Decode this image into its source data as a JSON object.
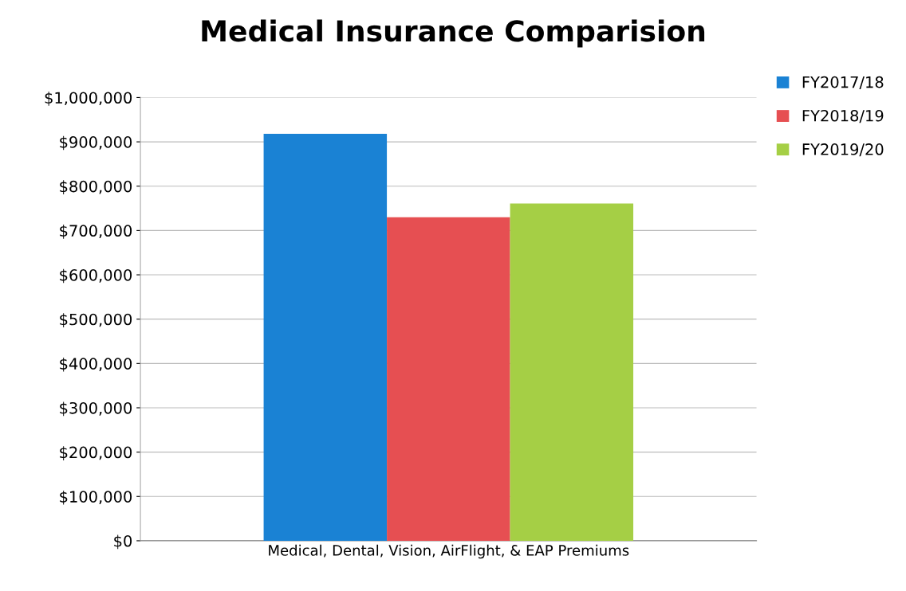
{
  "chart_data": {
    "type": "bar",
    "title": "Medical Insurance Comparision",
    "categories": [
      "Medical, Dental, Vision, AirFlight, & EAP Premiums"
    ],
    "series": [
      {
        "name": "FY2017/18",
        "color": "#1a82d4",
        "values": [
          918000
        ]
      },
      {
        "name": "FY2018/19",
        "color": "#e64f52",
        "values": [
          730000
        ]
      },
      {
        "name": "FY2019/20",
        "color": "#a5cf45",
        "values": [
          761000
        ]
      }
    ],
    "ylim": [
      0,
      1000000
    ],
    "yticks": [
      {
        "value": 0,
        "label": "$0"
      },
      {
        "value": 100000,
        "label": "$100,000"
      },
      {
        "value": 200000,
        "label": "$200,000"
      },
      {
        "value": 300000,
        "label": "$300,000"
      },
      {
        "value": 400000,
        "label": "$400,000"
      },
      {
        "value": 500000,
        "label": "$500,000"
      },
      {
        "value": 600000,
        "label": "$600,000"
      },
      {
        "value": 700000,
        "label": "$700,000"
      },
      {
        "value": 800000,
        "label": "$800,000"
      },
      {
        "value": 900000,
        "label": "$900,000"
      },
      {
        "value": 1000000,
        "label": "$1,000,000"
      }
    ],
    "grid": "y",
    "legend": "top right"
  }
}
